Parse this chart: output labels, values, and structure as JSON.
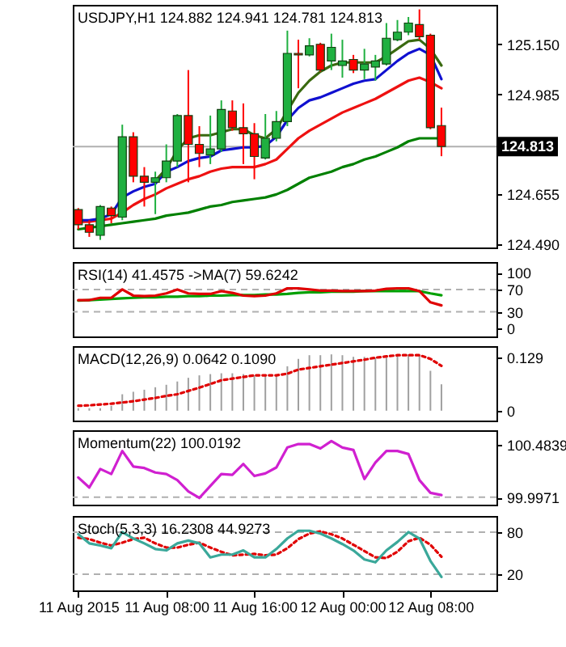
{
  "chart_data": [
    {
      "type": "candlestick",
      "title": "USDJPY,H1 124.882 124.941 124.781 124.813",
      "x": [
        "2015-08-11T00:00",
        "2015-08-11T01:00",
        "2015-08-11T02:00",
        "2015-08-11T03:00",
        "2015-08-11T04:00",
        "2015-08-11T05:00",
        "2015-08-11T06:00",
        "2015-08-11T07:00",
        "2015-08-11T08:00",
        "2015-08-11T09:00",
        "2015-08-11T10:00",
        "2015-08-11T11:00",
        "2015-08-11T12:00",
        "2015-08-11T13:00",
        "2015-08-11T14:00",
        "2015-08-11T15:00",
        "2015-08-11T16:00",
        "2015-08-11T17:00",
        "2015-08-11T18:00",
        "2015-08-11T19:00",
        "2015-08-11T20:00",
        "2015-08-11T21:00",
        "2015-08-11T22:00",
        "2015-08-11T23:00",
        "2015-08-12T00:00",
        "2015-08-12T01:00",
        "2015-08-12T02:00",
        "2015-08-12T03:00",
        "2015-08-12T04:00",
        "2015-08-12T05:00",
        "2015-08-12T06:00",
        "2015-08-12T07:00",
        "2015-08-12T08:00",
        "2015-08-12T09:00"
      ],
      "ohlc": [
        [
          124.605,
          124.61,
          124.54,
          124.555
        ],
        [
          124.555,
          124.57,
          124.515,
          124.53
        ],
        [
          124.52,
          124.62,
          124.505,
          124.615
        ],
        [
          124.61,
          124.615,
          124.56,
          124.585
        ],
        [
          124.58,
          124.885,
          124.57,
          124.845
        ],
        [
          124.845,
          124.86,
          124.695,
          124.715
        ],
        [
          124.715,
          124.745,
          124.615,
          124.695
        ],
        [
          124.695,
          124.73,
          124.59,
          124.71
        ],
        [
          124.71,
          124.82,
          124.695,
          124.765
        ],
        [
          124.765,
          124.92,
          124.745,
          124.915
        ],
        [
          124.915,
          125.065,
          124.695,
          124.82
        ],
        [
          124.82,
          124.88,
          124.745,
          124.79
        ],
        [
          124.785,
          124.915,
          124.755,
          124.805
        ],
        [
          124.805,
          124.965,
          124.795,
          124.935
        ],
        [
          124.93,
          124.965,
          124.865,
          124.875
        ],
        [
          124.875,
          124.955,
          124.755,
          124.855
        ],
        [
          124.855,
          124.89,
          124.705,
          124.78
        ],
        [
          124.775,
          124.92,
          124.77,
          124.84
        ],
        [
          124.84,
          124.93,
          124.83,
          124.895
        ],
        [
          124.895,
          125.195,
          124.88,
          125.12
        ],
        [
          125.12,
          125.165,
          125.005,
          125.115
        ],
        [
          125.115,
          125.17,
          125.11,
          125.145
        ],
        [
          125.15,
          125.155,
          125.06,
          125.065
        ],
        [
          125.095,
          125.185,
          125.065,
          125.14
        ],
        [
          125.08,
          125.165,
          125.04,
          125.095
        ],
        [
          125.1,
          125.115,
          125.055,
          125.065
        ],
        [
          125.065,
          125.135,
          125.035,
          125.085
        ],
        [
          125.075,
          125.115,
          125.03,
          125.095
        ],
        [
          125.085,
          125.22,
          125.08,
          125.17
        ],
        [
          125.165,
          125.23,
          125.16,
          125.19
        ],
        [
          125.19,
          125.24,
          125.18,
          125.22
        ],
        [
          125.215,
          125.265,
          125.165,
          125.175
        ],
        [
          125.18,
          125.185,
          124.87,
          124.875
        ],
        [
          124.882,
          124.941,
          124.781,
          124.813
        ]
      ],
      "colors": [
        "#ff0000",
        "#ff0000",
        "#1fb040",
        "#ff0000",
        "#1fb040",
        "#ff0000",
        "#ff0000",
        "#1fb040",
        "#1fb040",
        "#1fb040",
        "#ff0000",
        "#ff0000",
        "#1fb040",
        "#1fb040",
        "#ff0000",
        "#ff0000",
        "#ff0000",
        "#1fb040",
        "#1fb040",
        "#1fb040",
        "#ff0000",
        "#1fb040",
        "#ff0000",
        "#1fb040",
        "#1fb040",
        "#ff0000",
        "#1fb040",
        "#1fb040",
        "#1fb040",
        "#1fb040",
        "#1fb040",
        "#ff0000",
        "#ff0000",
        "#ff0000"
      ],
      "series": [
        {
          "type": "line",
          "color": "#008000",
          "values": [
            124.54,
            124.545,
            124.55,
            124.555,
            124.56,
            124.565,
            124.57,
            124.575,
            124.585,
            124.59,
            124.595,
            124.605,
            124.615,
            124.62,
            124.63,
            124.635,
            124.64,
            124.645,
            124.655,
            124.67,
            124.69,
            124.71,
            124.72,
            124.73,
            124.745,
            124.755,
            124.77,
            124.78,
            124.795,
            124.81,
            124.83,
            124.84,
            124.84,
            124.84
          ]
        },
        {
          "type": "line",
          "color": "#ee1111",
          "values": [
            124.565,
            124.565,
            124.57,
            124.575,
            124.595,
            124.62,
            124.64,
            124.655,
            124.675,
            124.69,
            124.705,
            124.715,
            124.73,
            124.74,
            124.745,
            124.745,
            124.745,
            124.755,
            124.77,
            124.805,
            124.84,
            124.865,
            124.885,
            124.905,
            124.925,
            124.94,
            124.955,
            124.97,
            124.99,
            125.01,
            125.03,
            125.04,
            125.025,
            125.005
          ]
        },
        {
          "type": "line",
          "color": "#1010d0",
          "values": [
            124.57,
            124.57,
            124.575,
            124.59,
            124.645,
            124.665,
            124.68,
            124.69,
            124.73,
            124.745,
            124.765,
            124.775,
            124.78,
            124.8,
            124.805,
            124.81,
            124.81,
            124.815,
            124.845,
            124.9,
            124.94,
            124.965,
            124.975,
            124.99,
            125.005,
            125.02,
            125.03,
            125.035,
            125.065,
            125.095,
            125.12,
            125.135,
            125.115,
            125.035
          ]
        },
        {
          "type": "line",
          "color": "#3a6a10",
          "values": [
            null,
            null,
            null,
            null,
            null,
            null,
            null,
            124.7,
            124.74,
            124.8,
            124.84,
            124.85,
            124.85,
            124.86,
            124.87,
            124.87,
            124.85,
            124.84,
            124.87,
            124.93,
            124.99,
            125.03,
            125.06,
            125.08,
            125.09,
            125.09,
            125.09,
            125.09,
            125.11,
            125.135,
            125.16,
            125.165,
            125.135,
            125.08
          ]
        }
      ],
      "ref_lines": [
        {
          "axis": "y",
          "value": 124.813,
          "label": "124.813",
          "color": "#b0b0b0"
        }
      ],
      "xlim": [
        "2015-08-10T23:30",
        "2015-08-12T14:00"
      ],
      "ylim": [
        124.48,
        125.28
      ],
      "yticks": [
        {
          "value": 124.49,
          "label": "124.490"
        },
        124.655,
        124.985,
        {
          "value": 125.15,
          "label": "125.150"
        }
      ],
      "tick_labels": "y"
    },
    {
      "type": "line",
      "title": "RSI(14) 41.4575 ->MA(7) 59.6242",
      "x": [
        "2015-08-11T00:00",
        "2015-08-11T01:00",
        "2015-08-11T02:00",
        "2015-08-11T03:00",
        "2015-08-11T04:00",
        "2015-08-11T05:00",
        "2015-08-11T06:00",
        "2015-08-11T07:00",
        "2015-08-11T08:00",
        "2015-08-11T09:00",
        "2015-08-11T10:00",
        "2015-08-11T11:00",
        "2015-08-11T12:00",
        "2015-08-11T13:00",
        "2015-08-11T14:00",
        "2015-08-11T15:00",
        "2015-08-11T16:00",
        "2015-08-11T17:00",
        "2015-08-11T18:00",
        "2015-08-11T19:00",
        "2015-08-11T20:00",
        "2015-08-11T21:00",
        "2015-08-11T22:00",
        "2015-08-11T23:00",
        "2015-08-12T00:00",
        "2015-08-12T01:00",
        "2015-08-12T02:00",
        "2015-08-12T03:00",
        "2015-08-12T04:00",
        "2015-08-12T05:00",
        "2015-08-12T06:00",
        "2015-08-12T07:00",
        "2015-08-12T08:00",
        "2015-08-12T09:00"
      ],
      "series": [
        {
          "color": "#00a000",
          "values": [
            50,
            51,
            52,
            53,
            54,
            55,
            56,
            56,
            57,
            57,
            58,
            58,
            59,
            59,
            60,
            60,
            60,
            61,
            61,
            62,
            64,
            65,
            65,
            66,
            66,
            66,
            67,
            67,
            67,
            67,
            67,
            67,
            63,
            59.6242
          ]
        },
        {
          "color": "#e00000",
          "values": [
            51,
            51,
            55,
            55,
            70,
            59,
            58,
            59,
            63,
            70,
            63,
            62,
            62,
            67,
            64,
            59,
            58,
            59,
            63,
            72,
            72,
            70,
            68,
            68,
            67,
            67,
            67,
            68,
            71,
            72,
            72,
            67,
            47,
            41.4575
          ]
        }
      ],
      "ref_lines": [
        {
          "axis": "y",
          "value": 70,
          "color": "#b0b0b0",
          "line_style": "dashed"
        },
        {
          "axis": "y",
          "value": 30,
          "color": "#b0b0b0",
          "line_style": "dashed"
        }
      ],
      "xlim": [
        "2015-08-10T23:30",
        "2015-08-12T14:00"
      ],
      "ylim": [
        -14,
        119
      ],
      "yticks": [
        0,
        30,
        70,
        100
      ],
      "tick_labels": "y"
    },
    {
      "type": "bar",
      "title": "MACD(12,26,9) 0.0642 0.1090",
      "x": [
        "2015-08-11T00:00",
        "2015-08-11T01:00",
        "2015-08-11T02:00",
        "2015-08-11T03:00",
        "2015-08-11T04:00",
        "2015-08-11T05:00",
        "2015-08-11T06:00",
        "2015-08-11T07:00",
        "2015-08-11T08:00",
        "2015-08-11T09:00",
        "2015-08-11T10:00",
        "2015-08-11T11:00",
        "2015-08-11T12:00",
        "2015-08-11T13:00",
        "2015-08-11T14:00",
        "2015-08-11T15:00",
        "2015-08-11T16:00",
        "2015-08-11T17:00",
        "2015-08-11T18:00",
        "2015-08-11T19:00",
        "2015-08-11T20:00",
        "2015-08-11T21:00",
        "2015-08-11T22:00",
        "2015-08-11T23:00",
        "2015-08-12T00:00",
        "2015-08-12T01:00",
        "2015-08-12T02:00",
        "2015-08-12T03:00",
        "2015-08-12T04:00",
        "2015-08-12T05:00",
        "2015-08-12T06:00",
        "2015-08-12T07:00",
        "2015-08-12T08:00",
        "2015-08-12T09:00"
      ],
      "series": [
        {
          "type": "bar",
          "color": "#a0a0a0",
          "values": [
            0.006,
            0.006,
            0.006,
            0.012,
            0.04,
            0.046,
            0.051,
            0.057,
            0.063,
            0.071,
            0.08,
            0.086,
            0.089,
            0.091,
            0.091,
            0.089,
            0.086,
            0.086,
            0.086,
            0.108,
            0.126,
            0.135,
            0.135,
            0.137,
            0.135,
            0.131,
            0.131,
            0.129,
            0.129,
            0.135,
            0.137,
            0.135,
            0.097,
            0.0642
          ]
        },
        {
          "type": "line",
          "line_style": "dotted",
          "color": "#e00000",
          "values": [
            0.012,
            0.013,
            0.015,
            0.017,
            0.02,
            0.023,
            0.027,
            0.031,
            0.036,
            0.04,
            0.048,
            0.056,
            0.065,
            0.074,
            0.078,
            0.082,
            0.086,
            0.086,
            0.086,
            0.09,
            0.1,
            0.104,
            0.108,
            0.112,
            0.116,
            0.12,
            0.124,
            0.129,
            0.132,
            0.135,
            0.135,
            0.135,
            0.126,
            0.109
          ]
        }
      ],
      "xlim": [
        "2015-08-10T23:30",
        "2015-08-12T14:00"
      ],
      "ylim": [
        -0.024,
        0.157
      ],
      "yticks": [
        0,
        0.129
      ],
      "tick_labels": "y"
    },
    {
      "type": "line",
      "title": "Momentum(22) 100.0192",
      "x": [
        "2015-08-11T00:00",
        "2015-08-11T01:00",
        "2015-08-11T02:00",
        "2015-08-11T03:00",
        "2015-08-11T04:00",
        "2015-08-11T05:00",
        "2015-08-11T06:00",
        "2015-08-11T07:00",
        "2015-08-11T08:00",
        "2015-08-11T09:00",
        "2015-08-11T10:00",
        "2015-08-11T11:00",
        "2015-08-11T12:00",
        "2015-08-11T13:00",
        "2015-08-11T14:00",
        "2015-08-11T15:00",
        "2015-08-11T16:00",
        "2015-08-11T17:00",
        "2015-08-11T18:00",
        "2015-08-11T19:00",
        "2015-08-11T20:00",
        "2015-08-11T21:00",
        "2015-08-11T22:00",
        "2015-08-11T23:00",
        "2015-08-12T00:00",
        "2015-08-12T01:00",
        "2015-08-12T02:00",
        "2015-08-12T03:00",
        "2015-08-12T04:00",
        "2015-08-12T05:00",
        "2015-08-12T06:00",
        "2015-08-12T07:00",
        "2015-08-12T08:00",
        "2015-08-12T09:00"
      ],
      "series": [
        {
          "color": "#d020d0",
          "values": [
            100.182,
            100.089,
            100.261,
            100.214,
            100.428,
            100.284,
            100.27,
            100.228,
            100.214,
            100.158,
            100.053,
            99.992,
            100.103,
            100.214,
            100.206,
            100.307,
            100.196,
            100.22,
            100.275,
            100.46,
            100.492,
            100.492,
            100.451,
            100.52,
            100.46,
            100.437,
            100.168,
            100.321,
            100.428,
            100.428,
            100.4,
            100.158,
            100.04,
            100.0192
          ]
        }
      ],
      "ref_lines": [
        {
          "axis": "y",
          "value": 100,
          "color": "#b0b0b0",
          "line_style": "dashed"
        }
      ],
      "xlim": [
        "2015-08-10T23:30",
        "2015-08-12T14:00"
      ],
      "ylim": [
        99.93,
        100.62
      ],
      "yticks": [
        99.9971,
        100.4839
      ],
      "tick_labels": "y"
    },
    {
      "type": "line",
      "title": "Stoch(5,3,3) 16.2308 44.9273",
      "x": [
        "2015-08-11T00:00",
        "2015-08-11T01:00",
        "2015-08-11T02:00",
        "2015-08-11T03:00",
        "2015-08-11T04:00",
        "2015-08-11T05:00",
        "2015-08-11T06:00",
        "2015-08-11T07:00",
        "2015-08-11T08:00",
        "2015-08-11T09:00",
        "2015-08-11T10:00",
        "2015-08-11T11:00",
        "2015-08-11T12:00",
        "2015-08-11T13:00",
        "2015-08-11T14:00",
        "2015-08-11T15:00",
        "2015-08-11T16:00",
        "2015-08-11T17:00",
        "2015-08-11T18:00",
        "2015-08-11T19:00",
        "2015-08-11T20:00",
        "2015-08-11T21:00",
        "2015-08-11T22:00",
        "2015-08-11T23:00",
        "2015-08-12T00:00",
        "2015-08-12T01:00",
        "2015-08-12T02:00",
        "2015-08-12T03:00",
        "2015-08-12T04:00",
        "2015-08-12T05:00",
        "2015-08-12T06:00",
        "2015-08-12T07:00",
        "2015-08-12T08:00",
        "2015-08-12T09:00"
      ],
      "series": [
        {
          "color": "#e00000",
          "line_style": "dotted",
          "values": [
            72,
            70,
            65,
            61,
            65,
            70,
            72,
            64,
            58,
            58,
            62,
            65,
            58,
            52,
            47,
            48,
            49,
            47,
            48,
            57,
            70,
            78,
            81,
            77,
            71,
            62,
            53,
            44,
            43,
            52,
            67,
            72,
            62,
            44.9273
          ]
        },
        {
          "color": "#3aa89a",
          "values": [
            77,
            64,
            61,
            57,
            80,
            71,
            64,
            56,
            54,
            64,
            68,
            64,
            44,
            48,
            48,
            54,
            44,
            44,
            56,
            71,
            82,
            82,
            78,
            71,
            63,
            54,
            41,
            37,
            54,
            66,
            80,
            71,
            39,
            16.2308
          ]
        }
      ],
      "ref_lines": [
        {
          "axis": "y",
          "value": 80,
          "color": "#b0b0b0",
          "line_style": "dashed"
        },
        {
          "axis": "y",
          "value": 20,
          "color": "#b0b0b0",
          "line_style": "dashed"
        }
      ],
      "xlim": [
        "2015-08-10T23:30",
        "2015-08-12T14:00"
      ],
      "xticks": [
        {
          "value": "2015-08-11T00:00",
          "label": "11 Aug 2015"
        },
        {
          "value": "2015-08-11T08:00",
          "label": "11 Aug 08:00"
        },
        {
          "value": "2015-08-11T16:00",
          "label": "11 Aug 16:00"
        },
        {
          "value": "2015-08-12T00:00",
          "label": "12 Aug 00:00"
        },
        {
          "value": "2015-08-12T08:00",
          "label": "12 Aug 08:00"
        }
      ],
      "ylim": [
        -3,
        103
      ],
      "yticks": [
        20,
        80
      ]
    }
  ]
}
